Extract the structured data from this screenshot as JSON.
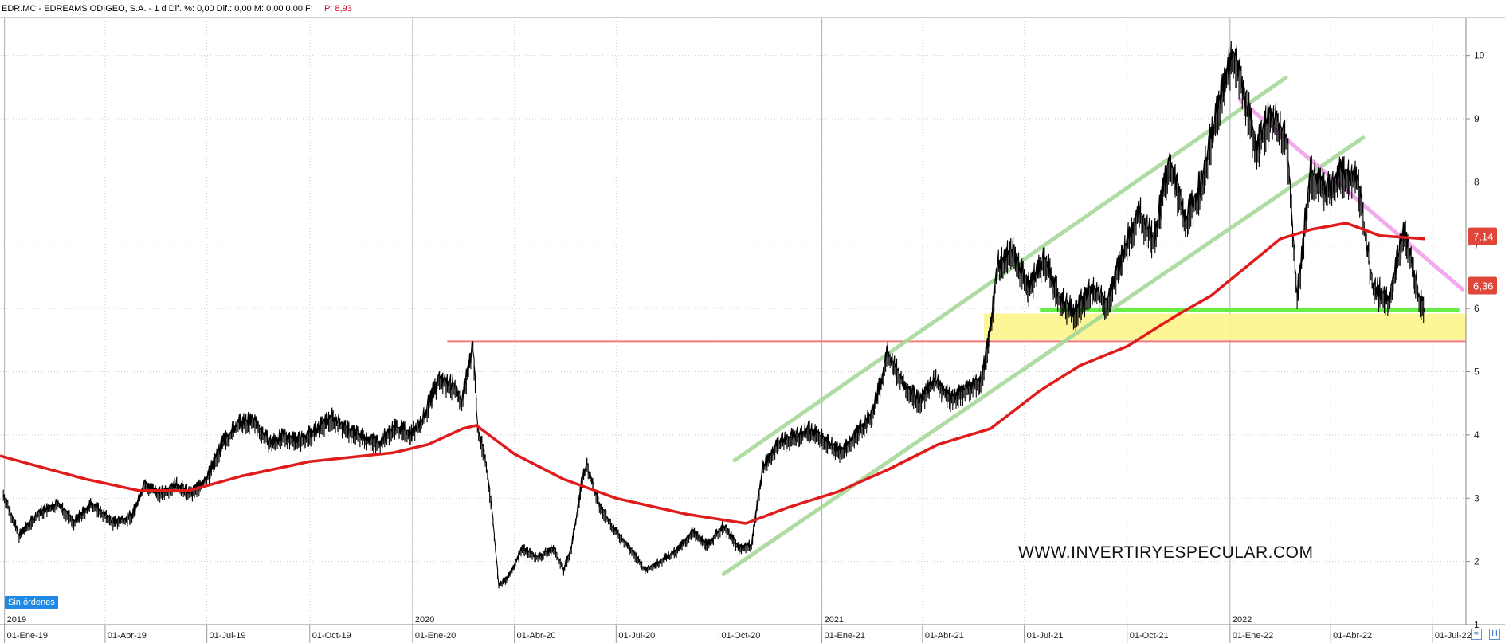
{
  "header": {
    "ticker": "EDR.MC",
    "company": "EDREAMS ODIGEO, S.A.",
    "period": "1 d",
    "dif_pct_label": "Dif. %:",
    "dif_pct": "0,00",
    "dif_label": "Dif.:",
    "dif": "0,00",
    "m_label": "M:",
    "m": "0,00",
    "m2": "0,00",
    "f_label": "F:",
    "last_label": "P:",
    "last_value": "8,93"
  },
  "status_badge": "Sin órdenes",
  "watermark": "WWW.INVERTIRYESPECULAR.COM",
  "price_tags": [
    {
      "value": 7.14,
      "label": "7,14",
      "color": "#e0453a"
    },
    {
      "value": 6.36,
      "label": "6,36",
      "color": "#e0453a"
    }
  ],
  "bottom_icons": [
    "chart-type-icon",
    "tool-icon"
  ],
  "chart_data": {
    "type": "line",
    "title": "EDR.MC - EDREAMS ODIGEO, S.A. - 1 d",
    "xlabel": "",
    "ylabel": "",
    "ylim": [
      1,
      10.6
    ],
    "y_ticks": [
      1,
      2,
      3,
      4,
      5,
      6,
      7,
      8,
      9,
      10
    ],
    "x_range": [
      "2018-12-28",
      "2022-07-31"
    ],
    "x_ticks": [
      {
        "date": "2019-01-01",
        "label": "01-Ene-19"
      },
      {
        "date": "2019-04-01",
        "label": "01-Abr-19"
      },
      {
        "date": "2019-07-01",
        "label": "01-Jul-19"
      },
      {
        "date": "2019-10-01",
        "label": "01-Oct-19"
      },
      {
        "date": "2020-01-01",
        "label": "01-Ene-20"
      },
      {
        "date": "2020-04-01",
        "label": "01-Abr-20"
      },
      {
        "date": "2020-07-01",
        "label": "01-Jul-20"
      },
      {
        "date": "2020-10-01",
        "label": "01-Oct-20"
      },
      {
        "date": "2021-01-01",
        "label": "01-Ene-21"
      },
      {
        "date": "2021-04-01",
        "label": "01-Abr-21"
      },
      {
        "date": "2021-07-01",
        "label": "01-Jul-21"
      },
      {
        "date": "2021-10-01",
        "label": "01-Oct-21"
      },
      {
        "date": "2022-01-01",
        "label": "01-Ene-22"
      },
      {
        "date": "2022-04-01",
        "label": "01-Abr-22"
      },
      {
        "date": "2022-07-01",
        "label": "01-Jul-22"
      }
    ],
    "year_labels": [
      {
        "date": "2019-01-01",
        "label": "2019"
      },
      {
        "date": "2020-01-01",
        "label": "2020"
      },
      {
        "date": "2021-01-01",
        "label": "2021"
      },
      {
        "date": "2022-01-01",
        "label": "2022"
      }
    ],
    "grid": true,
    "series": [
      {
        "name": "",
        "kind": "price",
        "color": "#000000",
        "points": [
          [
            "2018-12-31",
            3.05
          ],
          [
            "2019-01-14",
            2.4
          ],
          [
            "2019-02-01",
            2.75
          ],
          [
            "2019-02-18",
            2.9
          ],
          [
            "2019-03-04",
            2.6
          ],
          [
            "2019-03-20",
            2.9
          ],
          [
            "2019-04-08",
            2.6
          ],
          [
            "2019-04-25",
            2.7
          ],
          [
            "2019-05-06",
            3.2
          ],
          [
            "2019-05-20",
            3.05
          ],
          [
            "2019-06-03",
            3.2
          ],
          [
            "2019-06-17",
            3.05
          ],
          [
            "2019-07-01",
            3.3
          ],
          [
            "2019-07-15",
            3.85
          ],
          [
            "2019-07-29",
            4.15
          ],
          [
            "2019-08-12",
            4.2
          ],
          [
            "2019-08-26",
            3.85
          ],
          [
            "2019-09-09",
            3.95
          ],
          [
            "2019-09-23",
            3.9
          ],
          [
            "2019-10-07",
            4.05
          ],
          [
            "2019-10-21",
            4.25
          ],
          [
            "2019-11-04",
            4.05
          ],
          [
            "2019-11-18",
            3.95
          ],
          [
            "2019-12-02",
            3.85
          ],
          [
            "2019-12-16",
            4.1
          ],
          [
            "2019-12-30",
            4.0
          ],
          [
            "2020-01-10",
            4.2
          ],
          [
            "2020-01-24",
            4.85
          ],
          [
            "2020-02-07",
            4.75
          ],
          [
            "2020-02-14",
            4.5
          ],
          [
            "2020-02-24",
            5.4
          ],
          [
            "2020-02-28",
            4.1
          ],
          [
            "2020-03-06",
            3.6
          ],
          [
            "2020-03-12",
            2.8
          ],
          [
            "2020-03-18",
            1.6
          ],
          [
            "2020-03-27",
            1.75
          ],
          [
            "2020-04-08",
            2.2
          ],
          [
            "2020-04-22",
            2.05
          ],
          [
            "2020-05-06",
            2.2
          ],
          [
            "2020-05-15",
            1.85
          ],
          [
            "2020-05-22",
            2.2
          ],
          [
            "2020-06-01",
            3.3
          ],
          [
            "2020-06-05",
            3.5
          ],
          [
            "2020-06-15",
            2.9
          ],
          [
            "2020-06-29",
            2.5
          ],
          [
            "2020-07-13",
            2.2
          ],
          [
            "2020-07-27",
            1.85
          ],
          [
            "2020-08-10",
            2.0
          ],
          [
            "2020-08-24",
            2.15
          ],
          [
            "2020-09-07",
            2.45
          ],
          [
            "2020-09-21",
            2.25
          ],
          [
            "2020-10-05",
            2.55
          ],
          [
            "2020-10-19",
            2.2
          ],
          [
            "2020-10-30",
            2.25
          ],
          [
            "2020-11-09",
            3.45
          ],
          [
            "2020-11-23",
            3.85
          ],
          [
            "2020-12-07",
            3.95
          ],
          [
            "2020-12-21",
            4.05
          ],
          [
            "2021-01-04",
            3.9
          ],
          [
            "2021-01-18",
            3.7
          ],
          [
            "2021-02-01",
            4.0
          ],
          [
            "2021-02-15",
            4.3
          ],
          [
            "2021-03-01",
            5.25
          ],
          [
            "2021-03-15",
            4.8
          ],
          [
            "2021-03-29",
            4.5
          ],
          [
            "2021-04-12",
            4.85
          ],
          [
            "2021-04-26",
            4.55
          ],
          [
            "2021-05-10",
            4.7
          ],
          [
            "2021-05-24",
            4.85
          ],
          [
            "2021-05-31",
            5.55
          ],
          [
            "2021-06-07",
            6.65
          ],
          [
            "2021-06-21",
            6.85
          ],
          [
            "2021-07-05",
            6.3
          ],
          [
            "2021-07-19",
            6.75
          ],
          [
            "2021-08-02",
            6.1
          ],
          [
            "2021-08-16",
            5.9
          ],
          [
            "2021-08-30",
            6.3
          ],
          [
            "2021-09-13",
            6.05
          ],
          [
            "2021-09-27",
            6.8
          ],
          [
            "2021-10-11",
            7.5
          ],
          [
            "2021-10-25",
            7.05
          ],
          [
            "2021-11-08",
            8.3
          ],
          [
            "2021-11-22",
            7.3
          ],
          [
            "2021-12-06",
            7.9
          ],
          [
            "2021-12-20",
            9.0
          ],
          [
            "2022-01-03",
            10.0
          ],
          [
            "2022-01-14",
            9.35
          ],
          [
            "2022-01-24",
            8.5
          ],
          [
            "2022-02-07",
            9.0
          ],
          [
            "2022-02-21",
            8.6
          ],
          [
            "2022-03-02",
            6.1
          ],
          [
            "2022-03-14",
            8.1
          ],
          [
            "2022-03-28",
            7.8
          ],
          [
            "2022-04-11",
            8.1
          ],
          [
            "2022-04-25",
            8.0
          ],
          [
            "2022-05-09",
            6.3
          ],
          [
            "2022-05-23",
            6.1
          ],
          [
            "2022-06-06",
            7.2
          ],
          [
            "2022-06-20",
            6.1
          ],
          [
            "2022-06-24",
            6.0
          ]
        ]
      },
      {
        "name": "",
        "kind": "moving_average",
        "color": "#e01b1b",
        "points": [
          [
            "2018-12-28",
            3.67
          ],
          [
            "2019-02-01",
            3.5
          ],
          [
            "2019-03-15",
            3.3
          ],
          [
            "2019-05-01",
            3.12
          ],
          [
            "2019-06-15",
            3.12
          ],
          [
            "2019-08-01",
            3.35
          ],
          [
            "2019-10-01",
            3.58
          ],
          [
            "2019-12-15",
            3.72
          ],
          [
            "2020-01-15",
            3.85
          ],
          [
            "2020-02-15",
            4.1
          ],
          [
            "2020-02-27",
            4.15
          ],
          [
            "2020-04-01",
            3.7
          ],
          [
            "2020-05-15",
            3.3
          ],
          [
            "2020-07-01",
            3.0
          ],
          [
            "2020-09-01",
            2.75
          ],
          [
            "2020-10-25",
            2.6
          ],
          [
            "2020-12-01",
            2.85
          ],
          [
            "2021-01-15",
            3.1
          ],
          [
            "2021-03-01",
            3.45
          ],
          [
            "2021-04-15",
            3.85
          ],
          [
            "2021-06-01",
            4.1
          ],
          [
            "2021-07-15",
            4.7
          ],
          [
            "2021-08-20",
            5.1
          ],
          [
            "2021-10-01",
            5.4
          ],
          [
            "2021-11-15",
            5.9
          ],
          [
            "2021-12-15",
            6.2
          ],
          [
            "2022-01-15",
            6.65
          ],
          [
            "2022-02-15",
            7.1
          ],
          [
            "2022-03-15",
            7.25
          ],
          [
            "2022-04-15",
            7.35
          ],
          [
            "2022-05-15",
            7.15
          ],
          [
            "2022-06-24",
            7.1
          ]
        ]
      }
    ],
    "trendlines": [
      {
        "color": "#a6d99a",
        "from": [
          "2020-10-05",
          1.8
        ],
        "to": [
          "2022-04-30",
          8.7
        ]
      },
      {
        "color": "#a6d99a",
        "from": [
          "2020-10-15",
          3.6
        ],
        "to": [
          "2022-02-20",
          9.65
        ]
      },
      {
        "color": "#f2a0ec",
        "from": [
          "2022-01-10",
          9.3
        ],
        "to": [
          "2022-07-28",
          6.3
        ]
      }
    ],
    "horizontal_lines": [
      {
        "color": "#f27a7a",
        "value": 5.48,
        "from": "2020-02-01",
        "to": "2022-07-31"
      },
      {
        "color": "#66ee44",
        "value": 5.97,
        "from": "2021-07-15",
        "to": "2022-07-25"
      }
    ],
    "zones": [
      {
        "color": "#fcf58c",
        "y_from": 5.5,
        "y_to": 5.92,
        "from": "2021-05-26",
        "to": "2022-07-31"
      }
    ]
  }
}
